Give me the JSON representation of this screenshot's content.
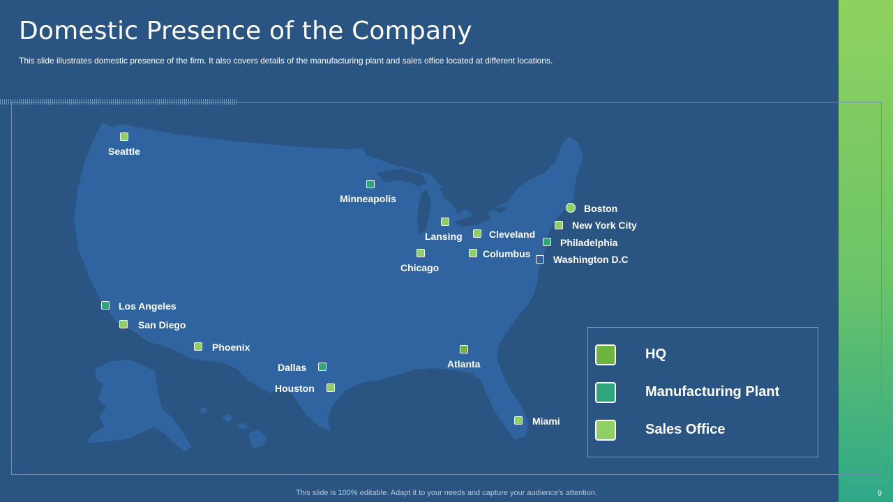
{
  "slide": {
    "title": "Domestic Presence of the Company",
    "subtitle": "This slide illustrates domestic presence of the firm. It also covers details of the manufacturing plant and sales office located at different  locations.",
    "footer": "This slide is 100% editable. Adapt it to your needs and capture your audience's attention.",
    "page_number": "9"
  },
  "colors": {
    "background": "#2a5582",
    "map_fill": "#2f64a0",
    "hq": "#6db33f",
    "manufacturing_plant": "#2ea57c",
    "sales_office": "#8ed066"
  },
  "legend": [
    {
      "label": "HQ",
      "type": "hq"
    },
    {
      "label": "Manufacturing Plant",
      "type": "manufacturing_plant"
    },
    {
      "label": "Sales Office",
      "type": "sales_office"
    }
  ],
  "locations": [
    {
      "name": "Seattle",
      "type": "sales_office"
    },
    {
      "name": "Minneapolis",
      "type": "manufacturing_plant"
    },
    {
      "name": "Boston",
      "type": "sales_office",
      "marker_shape": "circle"
    },
    {
      "name": "New York City",
      "type": "sales_office"
    },
    {
      "name": "Philadelphia",
      "type": "manufacturing_plant"
    },
    {
      "name": "Washington D.C",
      "type": "sales_office"
    },
    {
      "name": "Lansing",
      "type": "sales_office"
    },
    {
      "name": "Cleveland",
      "type": "sales_office"
    },
    {
      "name": "Columbus",
      "type": "sales_office"
    },
    {
      "name": "Chicago",
      "type": "sales_office"
    },
    {
      "name": "Los Angeles",
      "type": "manufacturing_plant"
    },
    {
      "name": "San Diego",
      "type": "sales_office"
    },
    {
      "name": "Phoenix",
      "type": "sales_office"
    },
    {
      "name": "Dallas",
      "type": "manufacturing_plant"
    },
    {
      "name": "Houston",
      "type": "sales_office"
    },
    {
      "name": "Atlanta",
      "type": "hq"
    },
    {
      "name": "Miami",
      "type": "sales_office"
    }
  ]
}
